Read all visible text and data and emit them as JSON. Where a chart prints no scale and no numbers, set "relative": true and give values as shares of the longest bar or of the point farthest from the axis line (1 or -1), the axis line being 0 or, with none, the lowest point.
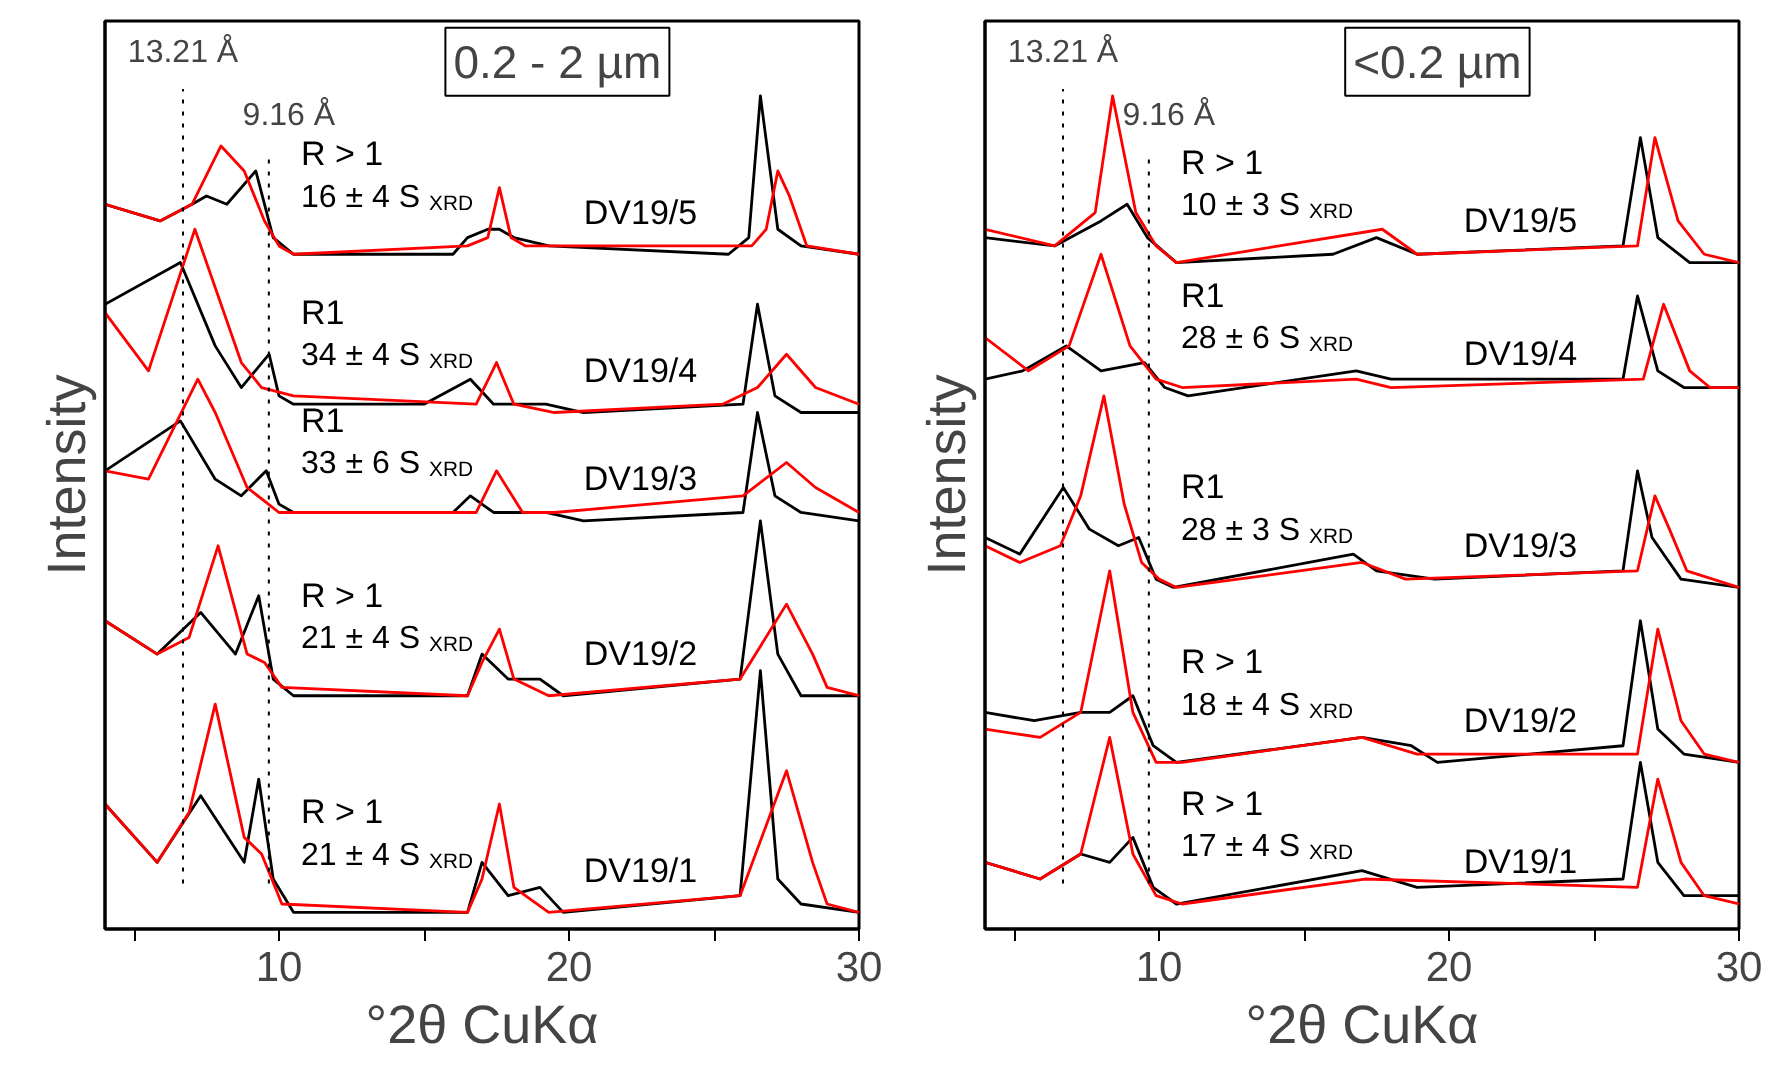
{
  "chart_data": [
    {
      "type": "line",
      "relative": true,
      "xlabel": "°2θ CuKα",
      "ylabel": "Intensity",
      "xlim": [
        4,
        30
      ],
      "xticks": [
        {
          "value": 5,
          "label": null
        },
        10,
        {
          "value": 15,
          "label": null
        },
        20,
        {
          "value": 25,
          "label": null
        },
        30
      ],
      "series": [
        {
          "color": "#000000",
          "x": [
            4,
            5.9,
            7.0,
            7.5,
            8.2,
            9.2,
            9.8,
            10.5,
            16.0,
            16.5,
            17.2,
            17.6,
            18.1,
            19.3,
            25.5,
            26.2,
            26.6,
            27.2,
            28.0,
            30
          ],
          "values": [
            0.87,
            0.85,
            0.87,
            0.88,
            0.87,
            0.91,
            0.83,
            0.81,
            0.81,
            0.83,
            0.84,
            0.84,
            0.83,
            0.82,
            0.81,
            0.83,
            1.0,
            0.84,
            0.82,
            0.81
          ]
        },
        {
          "color": "#ff0000",
          "x": [
            4,
            5.9,
            7.0,
            8.0,
            8.8,
            9.5,
            10.0,
            10.5,
            16.5,
            17.2,
            17.6,
            18.0,
            18.5,
            19.3,
            26.3,
            26.8,
            27.2,
            27.6,
            28.2,
            30
          ],
          "values": [
            0.87,
            0.85,
            0.87,
            0.94,
            0.91,
            0.85,
            0.82,
            0.81,
            0.82,
            0.83,
            0.89,
            0.83,
            0.82,
            0.82,
            0.82,
            0.84,
            0.91,
            0.88,
            0.82,
            0.81
          ]
        },
        {
          "color": "#000000",
          "x": [
            4,
            6.6,
            7.8,
            8.7,
            9.66,
            10.0,
            10.5,
            12.4,
            15.0,
            16.6,
            17.4,
            19.2,
            20.5,
            26.0,
            26.5,
            27.1,
            28.0,
            30
          ],
          "values": [
            0.75,
            0.8,
            0.7,
            0.65,
            0.69,
            0.64,
            0.63,
            0.63,
            0.63,
            0.66,
            0.63,
            0.63,
            0.62,
            0.63,
            0.75,
            0.64,
            0.62,
            0.62
          ]
        },
        {
          "color": "#ff0000",
          "x": [
            4,
            5.5,
            7.1,
            7.8,
            8.7,
            9.4,
            10.5,
            16.8,
            17.5,
            18.1,
            19.5,
            25.3,
            26.5,
            27.5,
            28.5,
            30
          ],
          "values": [
            0.74,
            0.67,
            0.84,
            0.77,
            0.68,
            0.65,
            0.64,
            0.63,
            0.68,
            0.63,
            0.62,
            0.63,
            0.65,
            0.69,
            0.65,
            0.63
          ]
        },
        {
          "color": "#000000",
          "x": [
            4,
            6.6,
            7.8,
            8.7,
            9.56,
            10.0,
            10.5,
            16.0,
            16.6,
            17.4,
            19.2,
            20.5,
            26.0,
            26.5,
            27.1,
            28.0,
            30
          ],
          "values": [
            0.55,
            0.61,
            0.54,
            0.52,
            0.55,
            0.51,
            0.5,
            0.5,
            0.52,
            0.5,
            0.5,
            0.49,
            0.5,
            0.62,
            0.52,
            0.5,
            0.49
          ]
        },
        {
          "color": "#ff0000",
          "x": [
            4,
            5.5,
            7.2,
            7.8,
            8.9,
            10.0,
            16.8,
            17.5,
            18.4,
            19.5,
            26.0,
            27.5,
            28.5,
            30
          ],
          "values": [
            0.55,
            0.54,
            0.66,
            0.62,
            0.53,
            0.5,
            0.5,
            0.55,
            0.5,
            0.5,
            0.52,
            0.56,
            0.53,
            0.5
          ]
        },
        {
          "color": "#000000",
          "x": [
            4,
            5.8,
            7.3,
            8.5,
            9.3,
            9.8,
            10.5,
            16.5,
            17.0,
            17.9,
            19.0,
            19.8,
            25.9,
            26.6,
            27.2,
            28.0,
            30
          ],
          "values": [
            0.37,
            0.33,
            0.38,
            0.33,
            0.4,
            0.3,
            0.28,
            0.28,
            0.33,
            0.3,
            0.3,
            0.28,
            0.3,
            0.49,
            0.33,
            0.28,
            0.28
          ]
        },
        {
          "color": "#ff0000",
          "x": [
            4,
            5.8,
            6.9,
            7.9,
            8.9,
            9.5,
            10.1,
            16.5,
            17.0,
            17.6,
            18.1,
            19.3,
            25.9,
            27.5,
            28.4,
            28.9,
            30
          ],
          "values": [
            0.37,
            0.33,
            0.35,
            0.46,
            0.33,
            0.32,
            0.29,
            0.28,
            0.32,
            0.36,
            0.3,
            0.28,
            0.3,
            0.39,
            0.33,
            0.29,
            0.28
          ]
        },
        {
          "color": "#000000",
          "x": [
            4,
            5.8,
            7.3,
            8.8,
            9.3,
            9.8,
            10.5,
            16.5,
            17.0,
            17.9,
            19.0,
            19.8,
            25.9,
            26.6,
            27.2,
            28.0,
            30
          ],
          "values": [
            0.15,
            0.08,
            0.16,
            0.08,
            0.18,
            0.06,
            0.02,
            0.02,
            0.08,
            0.04,
            0.05,
            0.02,
            0.04,
            0.31,
            0.06,
            0.03,
            0.02
          ]
        },
        {
          "color": "#ff0000",
          "x": [
            4,
            5.8,
            6.9,
            7.8,
            8.8,
            9.4,
            10.1,
            16.5,
            17.0,
            17.6,
            18.1,
            19.3,
            25.9,
            27.5,
            28.4,
            28.9,
            30
          ],
          "values": [
            0.15,
            0.08,
            0.14,
            0.27,
            0.11,
            0.09,
            0.03,
            0.02,
            0.06,
            0.15,
            0.05,
            0.02,
            0.04,
            0.19,
            0.08,
            0.03,
            0.02
          ]
        }
      ],
      "ref_lines": [
        {
          "axis": "x",
          "value": 6.69,
          "label": "13.21 Å",
          "line_style": "dotted",
          "color": "#000000"
        },
        {
          "axis": "x",
          "value": 9.65,
          "label": "9.16 Å",
          "line_style": "dotted",
          "color": "#000000"
        }
      ],
      "annotations": [
        "0.2 - 2 µm",
        "R > 1",
        "16 ± 4 S$_{XRD}$",
        "DV19/5",
        "R1",
        "34 ± 4 S$_{XRD}$",
        "DV19/4",
        "R1",
        "33 ± 6 S$_{XRD}$",
        "DV19/3",
        "R > 1",
        "21 ± 4 S$_{XRD}$",
        "DV19/2",
        "R > 1",
        "21 ± 4 S$_{XRD}$",
        "DV19/1"
      ]
    },
    {
      "type": "line",
      "relative": true,
      "xlabel": "°2θ CuKα",
      "ylabel": "Intensity",
      "xlim": [
        4,
        30
      ],
      "xticks": [
        {
          "value": 5,
          "label": null
        },
        10,
        {
          "value": 15,
          "label": null
        },
        20,
        {
          "value": 25,
          "label": null
        },
        30
      ],
      "series": [
        {
          "color": "#000000",
          "x": [
            4,
            6.4,
            8.0,
            8.9,
            9.6,
            10.6,
            16.0,
            17.5,
            18.9,
            26.0,
            26.6,
            27.2,
            28.3,
            30
          ],
          "values": [
            0.83,
            0.82,
            0.85,
            0.87,
            0.83,
            0.8,
            0.81,
            0.83,
            0.81,
            0.82,
            0.95,
            0.83,
            0.8,
            0.8
          ]
        },
        {
          "color": "#ff0000",
          "x": [
            4,
            6.4,
            7.8,
            8.4,
            9.2,
            9.9,
            10.6,
            17.7,
            18.9,
            26.5,
            27.1,
            27.9,
            28.8,
            30
          ],
          "values": [
            0.84,
            0.82,
            0.86,
            1.0,
            0.86,
            0.82,
            0.8,
            0.84,
            0.81,
            0.82,
            0.95,
            0.85,
            0.81,
            0.8
          ]
        },
        {
          "color": "#000000",
          "x": [
            4,
            5.3,
            6.8,
            8.0,
            9.5,
            10.2,
            11.0,
            16.8,
            18.0,
            26.0,
            26.5,
            27.2,
            28.1,
            30
          ],
          "values": [
            0.66,
            0.67,
            0.7,
            0.67,
            0.68,
            0.65,
            0.64,
            0.67,
            0.66,
            0.66,
            0.76,
            0.67,
            0.65,
            0.65
          ]
        },
        {
          "color": "#ff0000",
          "x": [
            4,
            5.5,
            6.9,
            8.0,
            9.0,
            9.9,
            10.8,
            16.8,
            18.0,
            26.7,
            27.4,
            28.3,
            29.0,
            30
          ],
          "values": [
            0.71,
            0.67,
            0.7,
            0.81,
            0.7,
            0.66,
            0.65,
            0.66,
            0.65,
            0.66,
            0.75,
            0.67,
            0.65,
            0.65
          ]
        },
        {
          "color": "#000000",
          "x": [
            4,
            5.2,
            6.7,
            7.6,
            8.6,
            9.3,
            9.9,
            10.5,
            16.7,
            17.5,
            19.5,
            26.0,
            26.5,
            27.0,
            28.0,
            30
          ],
          "values": [
            0.47,
            0.45,
            0.53,
            0.48,
            0.46,
            0.47,
            0.42,
            0.41,
            0.45,
            0.43,
            0.42,
            0.43,
            0.55,
            0.47,
            0.42,
            0.41
          ]
        },
        {
          "color": "#ff0000",
          "x": [
            4,
            5.2,
            6.6,
            7.3,
            8.1,
            8.8,
            9.4,
            10.0,
            10.6,
            17.0,
            18.5,
            26.5,
            27.1,
            27.6,
            28.2,
            30
          ],
          "values": [
            0.46,
            0.44,
            0.46,
            0.52,
            0.64,
            0.51,
            0.44,
            0.42,
            0.41,
            0.44,
            0.42,
            0.43,
            0.52,
            0.48,
            0.43,
            0.41
          ]
        },
        {
          "color": "#000000",
          "x": [
            4,
            5.7,
            7.3,
            8.3,
            9.1,
            9.8,
            10.6,
            17.0,
            18.7,
            19.6,
            26.0,
            26.6,
            27.2,
            28.1,
            30
          ],
          "values": [
            0.26,
            0.25,
            0.26,
            0.26,
            0.28,
            0.22,
            0.2,
            0.23,
            0.22,
            0.2,
            0.22,
            0.37,
            0.24,
            0.21,
            0.2
          ]
        },
        {
          "color": "#ff0000",
          "x": [
            4,
            5.9,
            7.3,
            8.3,
            9.1,
            9.9,
            10.8,
            17.0,
            18.9,
            26.5,
            27.2,
            28.0,
            28.8,
            30
          ],
          "values": [
            0.24,
            0.23,
            0.26,
            0.43,
            0.26,
            0.2,
            0.2,
            0.23,
            0.21,
            0.21,
            0.36,
            0.25,
            0.21,
            0.2
          ]
        },
        {
          "color": "#000000",
          "x": [
            4,
            5.9,
            7.3,
            8.3,
            9.1,
            9.8,
            10.6,
            17.0,
            18.9,
            26.0,
            26.6,
            27.2,
            28.1,
            30
          ],
          "values": [
            0.08,
            0.06,
            0.09,
            0.08,
            0.11,
            0.05,
            0.03,
            0.07,
            0.05,
            0.06,
            0.2,
            0.08,
            0.04,
            0.04
          ]
        },
        {
          "color": "#ff0000",
          "x": [
            4,
            5.9,
            7.3,
            8.3,
            9.1,
            9.9,
            10.8,
            17.1,
            26.5,
            27.2,
            28.0,
            28.8,
            30
          ],
          "values": [
            0.08,
            0.06,
            0.09,
            0.23,
            0.09,
            0.04,
            0.03,
            0.06,
            0.05,
            0.18,
            0.08,
            0.04,
            0.03
          ]
        }
      ],
      "ref_lines": [
        {
          "axis": "x",
          "value": 6.69,
          "label": "13.21 Å",
          "line_style": "dotted",
          "color": "#000000"
        },
        {
          "axis": "x",
          "value": 9.65,
          "label": "9.16 Å",
          "line_style": "dotted",
          "color": "#000000"
        }
      ],
      "annotations": [
        "<0.2 µm",
        "R > 1",
        "10 ± 3 S$_{XRD}$",
        "DV19/5",
        "R1",
        "28 ± 6 S$_{XRD}$",
        "DV19/4",
        "R1",
        "28 ± 3 S$_{XRD}$",
        "DV19/3",
        "R > 1",
        "18 ± 4 S$_{XRD}$",
        "DV19/2",
        "R > 1",
        "17 ± 4 S$_{XRD}$",
        "DV19/1"
      ]
    }
  ]
}
